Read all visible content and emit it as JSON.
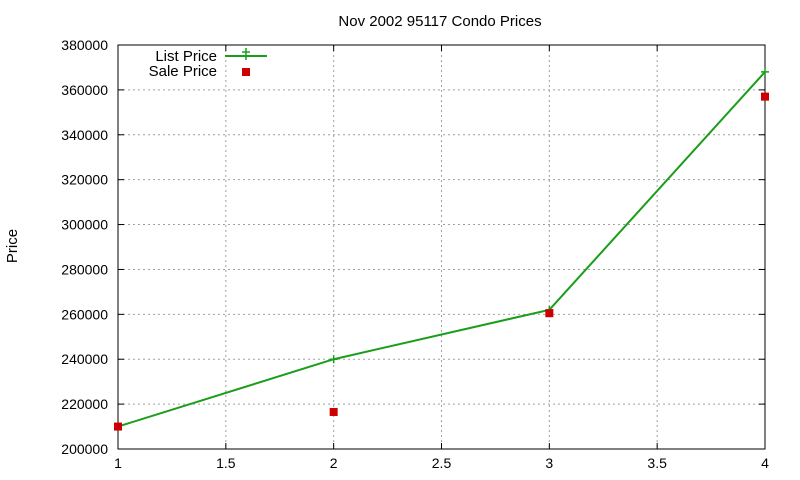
{
  "chart_data": {
    "type": "line",
    "title": "Nov 2002 95117 Condo Prices",
    "xlabel": "",
    "ylabel": "Price",
    "xlim": [
      1,
      4
    ],
    "ylim": [
      200000,
      380000
    ],
    "x_ticks": [
      1,
      1.5,
      2,
      2.5,
      3,
      3.5,
      4
    ],
    "x_tick_labels": [
      "1",
      "1.5",
      "2",
      "2.5",
      "3",
      "3.5",
      "4"
    ],
    "y_ticks": [
      200000,
      220000,
      240000,
      260000,
      280000,
      300000,
      320000,
      340000,
      360000,
      380000
    ],
    "y_tick_labels": [
      "200000",
      "220000",
      "240000",
      "260000",
      "280000",
      "300000",
      "320000",
      "340000",
      "360000",
      "380000"
    ],
    "grid": true,
    "legend_position": "top-left",
    "series": [
      {
        "name": "List Price",
        "style": "line-with-plus-markers",
        "color": "#1a9e1a",
        "x": [
          1,
          2,
          3,
          4
        ],
        "values": [
          210000,
          240000,
          262000,
          368000
        ]
      },
      {
        "name": "Sale Price",
        "style": "square-markers",
        "color": "#cc0000",
        "x": [
          1,
          2,
          3,
          4
        ],
        "values": [
          210000,
          216500,
          260500,
          357000
        ]
      }
    ]
  }
}
